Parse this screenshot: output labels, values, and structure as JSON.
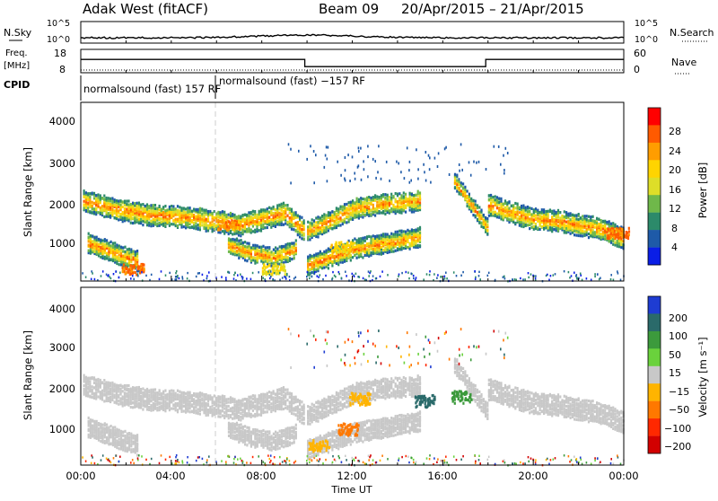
{
  "header": {
    "station": "Adak West (fitACF)",
    "beam": "Beam 09",
    "dates": "20/Apr/2015 – 21/Apr/2015"
  },
  "top_panels": {
    "nsky_label": "N.Sky",
    "nsky_ticks": [
      "10^5",
      "10^0"
    ],
    "nsearch_label": "N.Search",
    "nsearch_ticks": [
      "10^5",
      "10^0"
    ],
    "freq_label": "Freq.",
    "freq_unit": "[MHz]",
    "freq_ticks": [
      "18",
      "8"
    ],
    "nave_label": "Nave",
    "nave_ticks": [
      "60",
      "0"
    ],
    "cpid_label": "CPID",
    "cpid_segments": [
      "normalsound (fast) 157 RF",
      "normalsound (fast) −157 RF"
    ]
  },
  "x_axis": {
    "ticks": [
      "00:00",
      "04:00",
      "08:00",
      "12:00",
      "16:00",
      "20:00",
      "00:00"
    ],
    "label": "Time UT"
  },
  "power_panel": {
    "y_label": "Slant Range [km]",
    "y_ticks": [
      "4000",
      "3000",
      "2000",
      "1000"
    ],
    "cbar_label": "Power [dB]",
    "cbar_ticks": [
      "28",
      "24",
      "20",
      "16",
      "12",
      "8",
      "4"
    ],
    "cbar_colors": [
      "#ff0000",
      "#ff5a00",
      "#ff9d00",
      "#ffd400",
      "#dede28",
      "#6fb84a",
      "#2c8a6a",
      "#1e5aa8",
      "#0a1ee6"
    ]
  },
  "velocity_panel": {
    "y_label": "Slant Range [km]",
    "y_ticks": [
      "4000",
      "3000",
      "2000",
      "1000"
    ],
    "cbar_label": "Velocity [m s⁻¹]",
    "cbar_ticks": [
      "200",
      "100",
      "50",
      "15",
      "−15",
      "−50",
      "−100",
      "−200"
    ],
    "cbar_colors": [
      "#1e3cd2",
      "#2a6a6a",
      "#3c9a3c",
      "#6ad23c",
      "#c8c8c8",
      "#ffb400",
      "#ff7800",
      "#ff2800",
      "#d20000"
    ]
  },
  "chart_data": {
    "type": "heatmap",
    "title": "Adak West (fitACF)  Beam 09  20/Apr/2015 – 21/Apr/2015",
    "xlabel": "Time UT",
    "ylabel": "Slant Range [km]",
    "xlim_hours": [
      0,
      24
    ],
    "ylim_km": [
      180,
      4600
    ],
    "grid": false,
    "freq_mhz_series": [
      {
        "from_h": 0,
        "to_h": 9.9,
        "mhz": 13.7
      },
      {
        "from_h": 9.9,
        "to_h": 17.9,
        "mhz": 10.6
      },
      {
        "from_h": 17.9,
        "to_h": 24,
        "mhz": 13.7
      }
    ],
    "power_echo_bands": [
      {
        "name": "main",
        "x_h": [
          0.1,
          1.5,
          3.0,
          4.5,
          6.0,
          7.0,
          8.0,
          9.0,
          9.9
        ],
        "range_km": [
          2200,
          2000,
          1850,
          1800,
          1700,
          1600,
          1750,
          1900,
          1450
        ],
        "thickness_km": 250
      },
      {
        "name": "main-afternoon",
        "x_h": [
          10.0,
          11.0,
          12.0,
          13.0,
          14.0,
          15.0
        ],
        "range_km": [
          1450,
          1700,
          2000,
          2100,
          2150,
          2200
        ],
        "thickness_km": 230
      },
      {
        "name": "main-evening",
        "x_h": [
          18.0,
          19.0,
          20.0,
          21.0,
          22.0,
          23.0,
          24.0
        ],
        "range_km": [
          2100,
          1900,
          1750,
          1700,
          1600,
          1500,
          1250
        ],
        "thickness_km": 240
      },
      {
        "name": "lower",
        "x_h": [
          10.0,
          11.0,
          12.0,
          13.0,
          14.0,
          15.0
        ],
        "range_km": [
          600,
          800,
          1000,
          1100,
          1200,
          1300
        ],
        "thickness_km": 220
      },
      {
        "name": "morning-low",
        "x_h": [
          0.3,
          1.5,
          2.5
        ],
        "range_km": [
          1150,
          900,
          700
        ],
        "thickness_km": 220
      },
      {
        "name": "dusk-streak",
        "x_h": [
          16.5,
          17.0,
          17.5,
          18.0
        ],
        "range_km": [
          2700,
          2300,
          1900,
          1500
        ],
        "thickness_km": 180
      },
      {
        "name": "dawn-low",
        "x_h": [
          6.5,
          7.5,
          8.5,
          9.5
        ],
        "range_km": [
          1100,
          900,
          800,
          1000
        ],
        "thickness_km": 200
      }
    ],
    "hot_spots_db": [
      {
        "x_h": 2.3,
        "range_km": 500,
        "db": 28
      },
      {
        "x_h": 6.5,
        "range_km": 1600,
        "db": 26
      },
      {
        "x_h": 8.5,
        "range_km": 500,
        "db": 20
      },
      {
        "x_h": 11.5,
        "range_km": 1050,
        "db": 22
      },
      {
        "x_h": 23.7,
        "range_km": 1400,
        "db": 28
      }
    ],
    "velocity_hot_spots_ms": [
      {
        "x_h": 11.8,
        "range_km": 1100,
        "v": -100
      },
      {
        "x_h": 10.5,
        "range_km": 700,
        "v": -50
      },
      {
        "x_h": 12.3,
        "range_km": 1850,
        "v": -50
      },
      {
        "x_h": 16.8,
        "range_km": 1900,
        "v": 50
      },
      {
        "x_h": 15.2,
        "range_km": 1800,
        "v": 100
      }
    ]
  }
}
